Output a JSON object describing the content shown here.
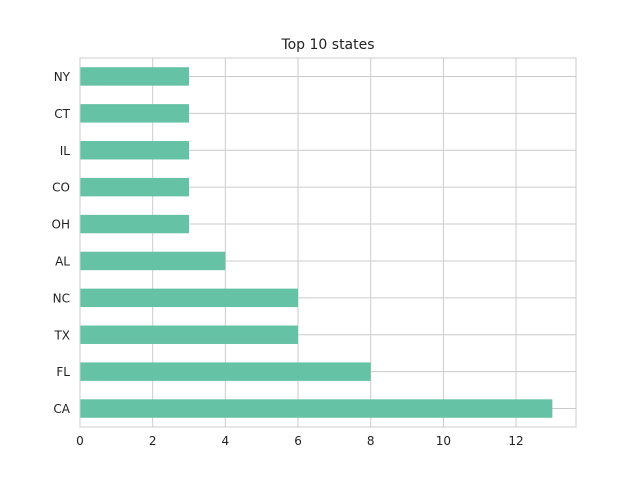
{
  "chart_data": {
    "type": "bar",
    "orientation": "horizontal",
    "title": "Top 10 states",
    "xlabel": "",
    "ylabel": "",
    "categories": [
      "CA",
      "FL",
      "TX",
      "NC",
      "AL",
      "OH",
      "CO",
      "IL",
      "CT",
      "NY"
    ],
    "values": [
      13,
      8,
      6,
      6,
      4,
      3,
      3,
      3,
      3,
      3
    ],
    "xlim": [
      0,
      13.65
    ],
    "xticks": [
      0,
      2,
      4,
      6,
      8,
      10,
      12
    ],
    "grid": true,
    "legend": "none",
    "bar_color": "#66c2a5",
    "grid_color": "#cccccc"
  }
}
